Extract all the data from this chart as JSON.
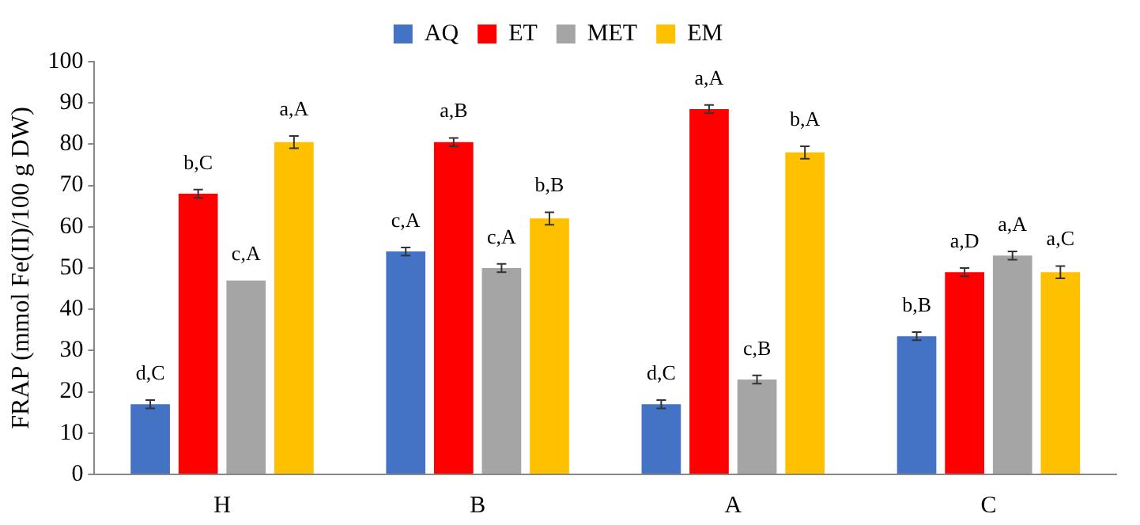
{
  "chart_data": {
    "type": "bar",
    "ylabel": "FRAP (mmol Fe(II)/100 g DW)",
    "categories": [
      "H",
      "B",
      "A",
      "C"
    ],
    "ylim": [
      0,
      100
    ],
    "yticks": [
      0,
      10,
      20,
      30,
      40,
      50,
      60,
      70,
      80,
      90,
      100
    ],
    "grid": false,
    "legend": "top",
    "series": [
      {
        "name": "AQ",
        "color": "#4472c4",
        "values": [
          17,
          54,
          17,
          33.5
        ],
        "errors": [
          1,
          1,
          1,
          1
        ],
        "value_labels": [
          "d,C",
          "c,A",
          "d,C",
          "b,B"
        ]
      },
      {
        "name": "ET",
        "color": "#ff0000",
        "values": [
          68,
          80.5,
          88.5,
          49
        ],
        "errors": [
          1,
          1,
          1,
          1
        ],
        "value_labels": [
          "b,C",
          "a,B",
          "a,A",
          "a,D"
        ]
      },
      {
        "name": "MET",
        "color": "#a5a5a5",
        "values": [
          47,
          50,
          23,
          53
        ],
        "errors": [
          0,
          1,
          1,
          1
        ],
        "value_labels": [
          "c,A",
          "c,A",
          "c,B",
          "a,A"
        ]
      },
      {
        "name": "EM",
        "color": "#ffc000",
        "values": [
          80.5,
          62,
          78,
          49
        ],
        "errors": [
          1.5,
          1.5,
          1.5,
          1.5
        ],
        "value_labels": [
          "a,A",
          "b,B",
          "b,A",
          "a,C"
        ]
      }
    ]
  }
}
